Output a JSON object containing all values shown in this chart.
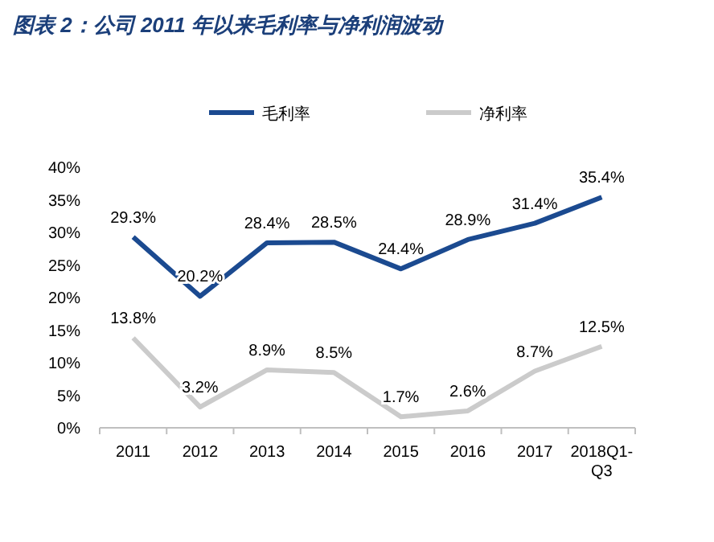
{
  "chart_data": {
    "type": "line",
    "title": "图表 2：公司 2011 年以来毛利率与净利润波动",
    "categories": [
      "2011",
      "2012",
      "2013",
      "2014",
      "2015",
      "2016",
      "2017",
      "2018Q1-Q3"
    ],
    "series": [
      {
        "name": "毛利率",
        "color": "#1b4a90",
        "values": [
          29.3,
          20.2,
          28.4,
          28.5,
          24.4,
          28.9,
          31.4,
          35.4
        ],
        "value_labels": [
          "29.3%",
          "20.2%",
          "28.4%",
          "28.5%",
          "24.4%",
          "28.9%",
          "31.4%",
          "35.4%"
        ]
      },
      {
        "name": "净利率",
        "color": "#cbcbcb",
        "values": [
          13.8,
          3.2,
          8.9,
          8.5,
          1.7,
          2.6,
          8.7,
          12.5
        ],
        "value_labels": [
          "13.8%",
          "3.2%",
          "8.9%",
          "8.5%",
          "1.7%",
          "2.6%",
          "8.7%",
          "12.5%"
        ]
      }
    ],
    "ylim": [
      0,
      40
    ],
    "yticks": [
      {
        "value": 0,
        "label": "0%"
      },
      {
        "value": 5,
        "label": "5%"
      },
      {
        "value": 10,
        "label": "10%"
      },
      {
        "value": 15,
        "label": "15%"
      },
      {
        "value": 20,
        "label": "20%"
      },
      {
        "value": 25,
        "label": "25%"
      },
      {
        "value": 30,
        "label": "30%"
      },
      {
        "value": 35,
        "label": "35%"
      },
      {
        "value": 40,
        "label": "40%"
      }
    ],
    "grid": false,
    "legend": "top",
    "marker": "none",
    "line_style": "solid"
  }
}
